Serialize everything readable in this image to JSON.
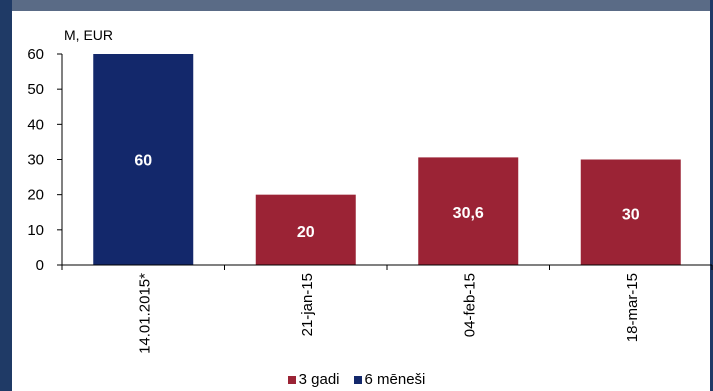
{
  "chart_data": {
    "type": "bar",
    "unit_label": "M, EUR",
    "categories": [
      "14.01.2015*",
      "21-jan-15",
      "04-feb-15",
      "18-mar-15"
    ],
    "values": [
      60,
      20,
      30.6,
      30
    ],
    "value_labels": [
      "60",
      "20",
      "30,6",
      "30"
    ],
    "bar_series": [
      1,
      0,
      0,
      0
    ],
    "series": [
      {
        "name": "3 gadi",
        "color": "#9b2335"
      },
      {
        "name": "6 mēneši",
        "color": "#13286b"
      }
    ],
    "y_ticks": [
      "0",
      "10",
      "20",
      "30",
      "40",
      "50",
      "60"
    ],
    "ylim": [
      0,
      60
    ],
    "legend_position": "bottom",
    "grid": false
  }
}
